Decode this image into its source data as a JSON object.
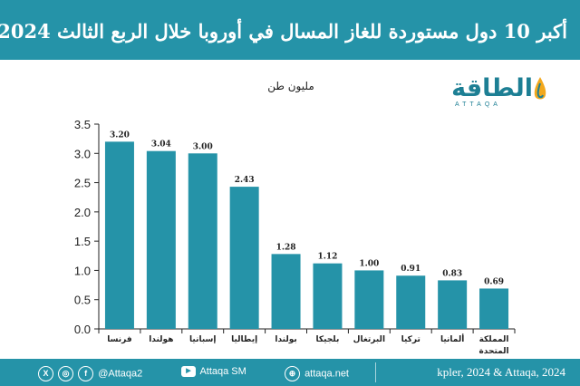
{
  "header": {
    "title": "أكبر 10 دول مستوردة للغاز المسال في أوروبا خلال الربع الثالث 2024"
  },
  "logo": {
    "arabic": "الطاقة",
    "latin": "ATTAQA"
  },
  "chart_data": {
    "type": "bar",
    "unit_label": "مليون طن",
    "categories": [
      "فرنسا",
      "هولندا",
      "إسبانيا",
      "إيطاليا",
      "بولندا",
      "بلجيكا",
      "البرتغال",
      "تركيا",
      "ألمانيا",
      "المملكة المتحدة"
    ],
    "values": [
      3.2,
      3.04,
      3.0,
      2.43,
      1.28,
      1.12,
      1.0,
      0.91,
      0.83,
      0.69
    ],
    "value_labels": [
      "3.20",
      "3.04",
      "3.00",
      "2.43",
      "1.28",
      "1.12",
      "1.00",
      "0.91",
      "0.83",
      "0.69"
    ],
    "yticks": [
      "0.0",
      "0.5",
      "1.0",
      "1.5",
      "2.0",
      "2.5",
      "3.0",
      "3.5"
    ],
    "ylim": [
      0,
      3.5
    ],
    "grid": false,
    "bar_color": "#2593a8"
  },
  "footer": {
    "x_icon": "x-icon",
    "instagram_icon": "instagram-icon",
    "facebook_icon": "facebook-icon",
    "handle": "@Attaqa2",
    "youtube_icon": "youtube-icon",
    "youtube": "Attaqa SM",
    "web_icon": "globe-icon",
    "website": "attaqa.net",
    "source": "kpler, 2024 & Attaqa, 2024"
  },
  "colors": {
    "brand": "#2593a8",
    "axis": "#222222"
  }
}
